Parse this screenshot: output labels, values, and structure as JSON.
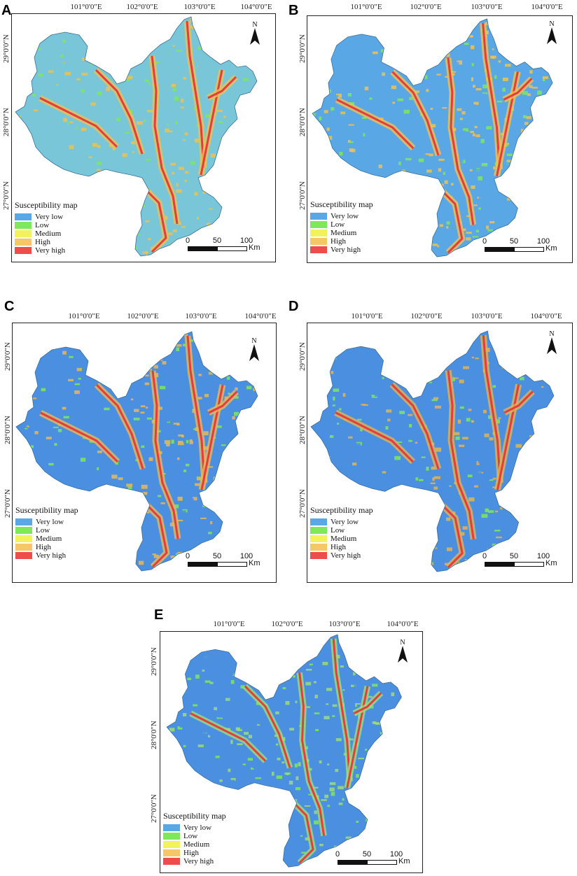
{
  "lon_labels": [
    "101°0'0\"E",
    "102°0'0\"E",
    "103°0'0\"E",
    "104°0'0\"E"
  ],
  "lat_labels": [
    "29°0'0\"N",
    "28°0'0\"N",
    "27°0'0\"N"
  ],
  "legend": {
    "title": "Susceptibility map",
    "classes": [
      {
        "label": "Very low",
        "color": "#5aa7e6"
      },
      {
        "label": "Low",
        "color": "#7fe85a"
      },
      {
        "label": "Medium",
        "color": "#f2f25a"
      },
      {
        "label": "High",
        "color": "#f5c766"
      },
      {
        "label": "Very high",
        "color": "#ef4d4d"
      }
    ]
  },
  "north_label": "N",
  "scale": {
    "ticks": [
      "0",
      "50",
      "100"
    ],
    "unit": "Km"
  },
  "panels": [
    {
      "letter": "A",
      "blend": {
        "low": "#79c6d9",
        "mid": "#e8c255",
        "river": "#e63c3c"
      }
    },
    {
      "letter": "B",
      "blend": {
        "low": "#5aa7e6",
        "mid": "#f0c252",
        "river": "#e63c3c"
      }
    },
    {
      "letter": "C",
      "blend": {
        "low": "#4a8fe0",
        "mid": "#e8b857",
        "river": "#e63c3c"
      }
    },
    {
      "letter": "D",
      "blend": {
        "low": "#4a8fe0",
        "mid": "#e0b455",
        "river": "#e63c3c"
      }
    },
    {
      "letter": "E",
      "blend": {
        "low": "#4a8fe0",
        "mid": "#9ddc7a",
        "river": "#e63c3c"
      }
    }
  ]
}
